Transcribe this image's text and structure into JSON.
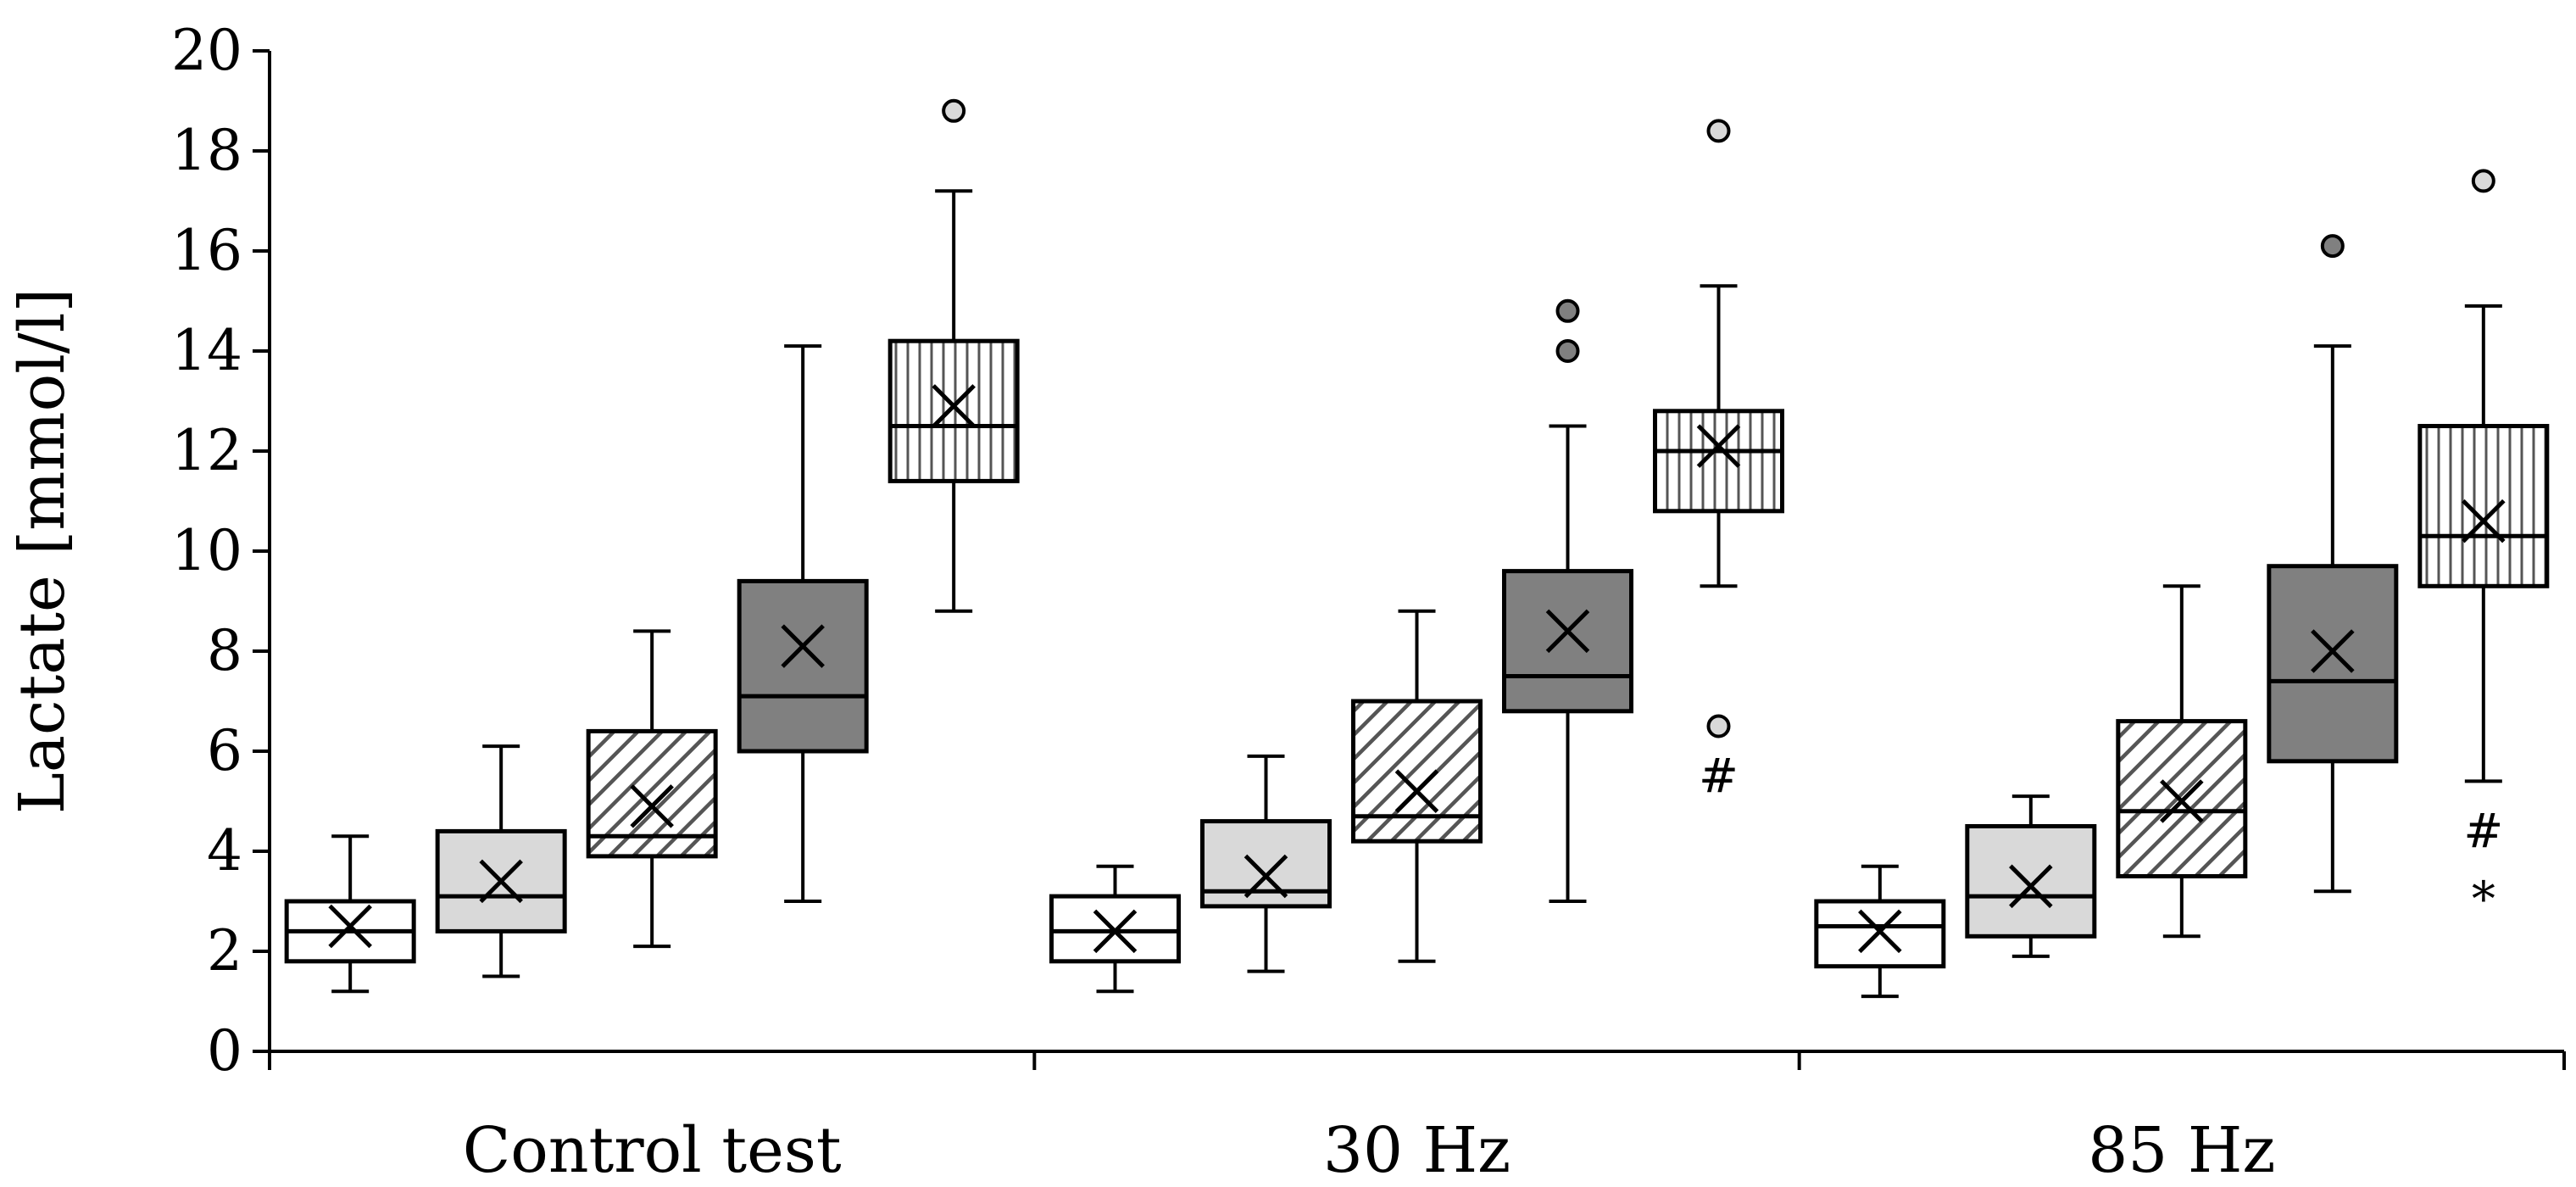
{
  "chart_data": {
    "type": "box",
    "title": "",
    "ylabel": "Lactate [mmol/l]",
    "xlabel": "",
    "ylim": [
      0,
      20
    ],
    "yticks": [
      0,
      2,
      4,
      6,
      8,
      10,
      12,
      14,
      16,
      18,
      20
    ],
    "categories": [
      "Control test",
      "30 Hz",
      "85 Hz"
    ],
    "grid": false,
    "series_styles": [
      {
        "pattern": "white",
        "fill": "#ffffff"
      },
      {
        "pattern": "light-gray",
        "fill": "#d9d9d9"
      },
      {
        "pattern": "diagonal-hatch",
        "fill": "#ffffff",
        "stroke": "#555555"
      },
      {
        "pattern": "dark-gray",
        "fill": "#808080"
      },
      {
        "pattern": "vertical-lines",
        "fill": "#ffffff",
        "stroke": "#555555"
      }
    ],
    "groups": [
      {
        "category": "Control test",
        "boxes": [
          {
            "min": 1.2,
            "q1": 1.8,
            "median": 2.4,
            "q3": 3.0,
            "max": 4.3,
            "mean": 2.5,
            "outliers": []
          },
          {
            "min": 1.5,
            "q1": 2.4,
            "median": 3.1,
            "q3": 4.4,
            "max": 6.1,
            "mean": 3.4,
            "outliers": []
          },
          {
            "min": 2.1,
            "q1": 3.9,
            "median": 4.3,
            "q3": 6.4,
            "max": 8.4,
            "mean": 4.9,
            "outliers": []
          },
          {
            "min": 3.0,
            "q1": 6.0,
            "median": 7.1,
            "q3": 9.4,
            "max": 14.1,
            "mean": 8.1,
            "outliers": []
          },
          {
            "min": 8.8,
            "q1": 11.4,
            "median": 12.5,
            "q3": 14.2,
            "max": 17.2,
            "mean": 12.9,
            "outliers": [
              18.8
            ],
            "annotations": []
          }
        ]
      },
      {
        "category": "30 Hz",
        "boxes": [
          {
            "min": 1.2,
            "q1": 1.8,
            "median": 2.4,
            "q3": 3.1,
            "max": 3.7,
            "mean": 2.4,
            "outliers": []
          },
          {
            "min": 1.6,
            "q1": 2.9,
            "median": 3.2,
            "q3": 4.6,
            "max": 5.9,
            "mean": 3.5,
            "outliers": []
          },
          {
            "min": 1.8,
            "q1": 4.2,
            "median": 4.7,
            "q3": 7.0,
            "max": 8.8,
            "mean": 5.2,
            "outliers": []
          },
          {
            "min": 3.0,
            "q1": 6.8,
            "median": 7.5,
            "q3": 9.6,
            "max": 12.5,
            "mean": 8.4,
            "outliers": [
              14.0,
              14.8
            ]
          },
          {
            "min": 9.3,
            "q1": 10.8,
            "median": 12.0,
            "q3": 12.8,
            "max": 15.3,
            "mean": 12.1,
            "outliers": [
              18.4,
              6.5
            ],
            "annotations": [
              "#"
            ]
          }
        ]
      },
      {
        "category": "85 Hz",
        "boxes": [
          {
            "min": 1.1,
            "q1": 1.7,
            "median": 2.5,
            "q3": 3.0,
            "max": 3.7,
            "mean": 2.4,
            "outliers": []
          },
          {
            "min": 1.9,
            "q1": 2.3,
            "median": 3.1,
            "q3": 4.5,
            "max": 5.1,
            "mean": 3.3,
            "outliers": []
          },
          {
            "min": 2.3,
            "q1": 3.5,
            "median": 4.8,
            "q3": 6.6,
            "max": 9.3,
            "mean": 5.0,
            "outliers": []
          },
          {
            "min": 3.2,
            "q1": 5.8,
            "median": 7.4,
            "q3": 9.7,
            "max": 14.1,
            "mean": 8.0,
            "outliers": [
              16.1
            ]
          },
          {
            "min": 5.4,
            "q1": 9.3,
            "median": 10.3,
            "q3": 12.5,
            "max": 14.9,
            "mean": 10.6,
            "outliers": [
              17.4
            ],
            "annotations": [
              "#",
              "*"
            ]
          }
        ]
      }
    ]
  }
}
